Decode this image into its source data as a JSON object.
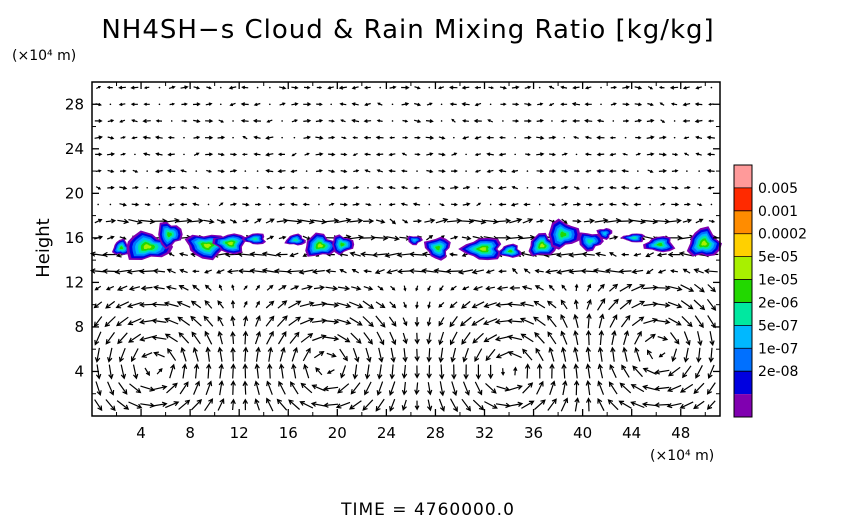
{
  "chart_data": {
    "type": "heatmap",
    "title": "NH4SH−s Cloud & Rain Mixing Ratio [kg/kg]",
    "ylabel": "Height",
    "y_unit": "(×10⁴ m)",
    "x_unit": "(×10⁴ m)",
    "footer": "TIME  =  4760000.0",
    "xlim": [
      0,
      51.2
    ],
    "ylim": [
      0,
      30
    ],
    "x_ticks": [
      "4",
      "8",
      "12",
      "16",
      "20",
      "24",
      "28",
      "32",
      "36",
      "40",
      "44",
      "48"
    ],
    "x_tick_values": [
      4,
      8,
      12,
      16,
      20,
      24,
      28,
      32,
      36,
      40,
      44,
      48
    ],
    "y_ticks": [
      "4",
      "8",
      "12",
      "16",
      "20",
      "24",
      "28"
    ],
    "y_tick_values": [
      4,
      8,
      12,
      16,
      20,
      24,
      28
    ],
    "colorbar": {
      "labels": [
        "0.005",
        "0.001",
        "0.0002",
        "5e-05",
        "1e-05",
        "2e-06",
        "5e-07",
        "1e-07",
        "2e-08"
      ],
      "colors": [
        "#ff9a9a",
        "#ff2a00",
        "#ff8c00",
        "#ffd000",
        "#a8f000",
        "#22d800",
        "#00e8a0",
        "#00b8ff",
        "#0070ff",
        "#0000e0",
        "#8000b0"
      ]
    },
    "cloud_cells": [
      {
        "x": 2.4,
        "y": 15.1,
        "w": 0.7,
        "h": 0.7,
        "level": 5
      },
      {
        "x": 4.5,
        "y": 15.2,
        "w": 1.9,
        "h": 1.2,
        "level": 4
      },
      {
        "x": 6.3,
        "y": 16.3,
        "w": 1.0,
        "h": 1.1,
        "level": 5
      },
      {
        "x": 9.4,
        "y": 15.3,
        "w": 1.7,
        "h": 1.1,
        "level": 4
      },
      {
        "x": 11.3,
        "y": 15.5,
        "w": 1.3,
        "h": 0.9,
        "level": 4
      },
      {
        "x": 13.3,
        "y": 15.9,
        "w": 0.9,
        "h": 0.5,
        "level": 6
      },
      {
        "x": 16.6,
        "y": 15.8,
        "w": 0.8,
        "h": 0.5,
        "level": 6
      },
      {
        "x": 18.6,
        "y": 15.3,
        "w": 1.3,
        "h": 1.0,
        "level": 4
      },
      {
        "x": 20.4,
        "y": 15.4,
        "w": 0.9,
        "h": 0.8,
        "level": 5
      },
      {
        "x": 26.3,
        "y": 15.8,
        "w": 0.6,
        "h": 0.4,
        "level": 7
      },
      {
        "x": 28.2,
        "y": 15.1,
        "w": 1.0,
        "h": 1.0,
        "level": 5
      },
      {
        "x": 31.9,
        "y": 15.0,
        "w": 1.6,
        "h": 1.0,
        "level": 4
      },
      {
        "x": 34.1,
        "y": 14.8,
        "w": 0.9,
        "h": 0.6,
        "level": 5
      },
      {
        "x": 36.7,
        "y": 15.3,
        "w": 1.1,
        "h": 1.0,
        "level": 4
      },
      {
        "x": 38.4,
        "y": 16.3,
        "w": 1.3,
        "h": 1.2,
        "level": 5
      },
      {
        "x": 40.6,
        "y": 15.7,
        "w": 1.0,
        "h": 0.8,
        "level": 6
      },
      {
        "x": 41.8,
        "y": 16.4,
        "w": 0.6,
        "h": 0.5,
        "level": 7
      },
      {
        "x": 44.2,
        "y": 16.0,
        "w": 0.9,
        "h": 0.4,
        "level": 6
      },
      {
        "x": 46.3,
        "y": 15.4,
        "w": 1.2,
        "h": 0.7,
        "level": 5
      },
      {
        "x": 49.9,
        "y": 15.5,
        "w": 1.3,
        "h": 1.3,
        "level": 4
      }
    ],
    "circulation_cells": [
      {
        "x": 5.0,
        "y": 4.5,
        "sense": 1
      },
      {
        "x": 19.2,
        "y": 4.5,
        "sense": -1
      },
      {
        "x": 34.0,
        "y": 4.0,
        "sense": 1
      },
      {
        "x": 46.2,
        "y": 6.0,
        "sense": -1
      }
    ],
    "grid": false,
    "legend": "right colorbar"
  }
}
